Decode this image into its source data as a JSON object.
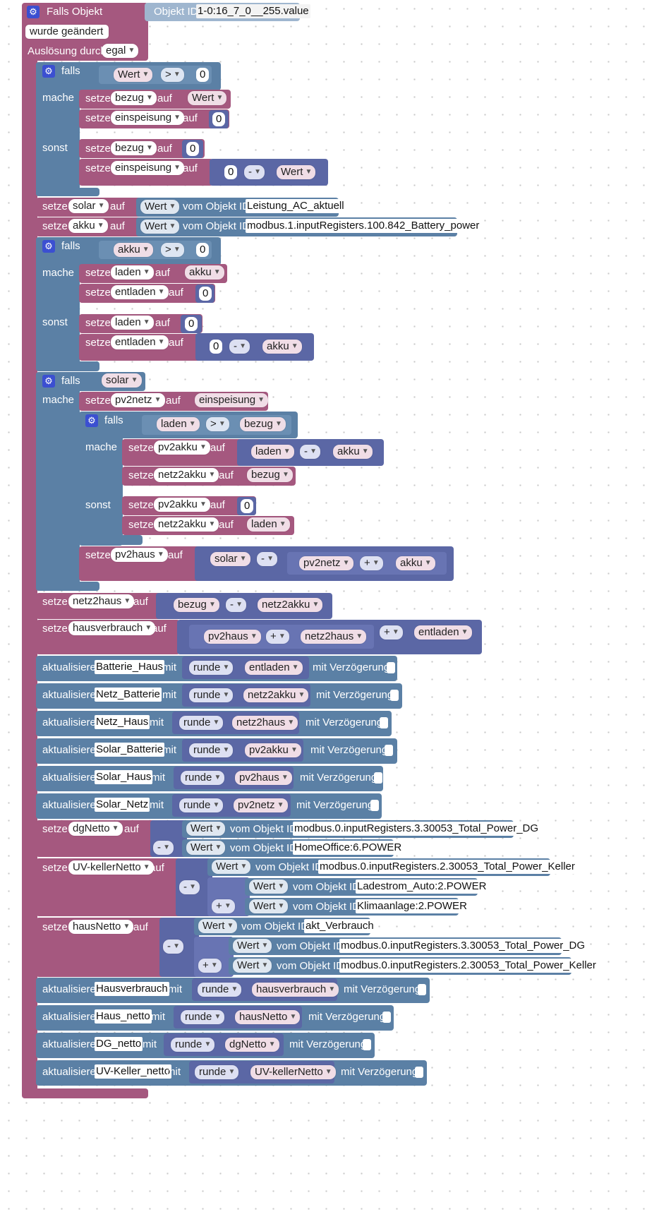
{
  "event": {
    "title": "Falls Objekt",
    "objekt_id_label": "Objekt ID",
    "objekt_id": "1-0:16_7_0__255.value",
    "trigger": "wurde geändert",
    "ausloesung_label": "Auslösung durch",
    "ausloesung_value": "egal"
  },
  "kw": {
    "falls": "falls",
    "mache": "mache",
    "sonst": "sonst",
    "setze": "setze",
    "auf": "auf",
    "vom_objekt": "vom Objekt ID",
    "aktualisiere": "aktualisiere",
    "mit": "mit",
    "mit_verzoegerung": "mit Verzögerung",
    "runde": "runde",
    "wert": "Wert"
  },
  "ops": {
    "gt": ">",
    "minus": "-",
    "plus": "+"
  },
  "nums": {
    "zero": "0"
  },
  "vars": {
    "wert": "Wert",
    "bezug": "bezug",
    "einspeisung": "einspeisung",
    "solar": "solar",
    "akku": "akku",
    "laden": "laden",
    "entladen": "entladen",
    "pv2netz": "pv2netz",
    "pv2akku": "pv2akku",
    "netz2akku": "netz2akku",
    "pv2haus": "pv2haus",
    "netz2haus": "netz2haus",
    "hausverbrauch": "hausverbrauch",
    "dgNetto": "dgNetto",
    "uvKellerNetto": "UV-kellerNetto",
    "hausNetto": "hausNetto"
  },
  "ids": {
    "solar": "Leistung_AC_aktuell",
    "akku": "modbus.1.inputRegisters.100.842_Battery_power",
    "dg": "modbus.0.inputRegisters.3.30053_Total_Power_DG",
    "homeoffice": "HomeOffice:6.POWER",
    "keller": "modbus.0.inputRegisters.2.30053_Total_Power_Keller",
    "ladestrom": "Ladestrom_Auto:2.POWER",
    "klima": "Klimaanlage:2.POWER",
    "aktVerbrauch": "akt_Verbrauch"
  },
  "targets": {
    "batterieHaus": "Batterie_Haus",
    "netzBatterie": "Netz_Batterie",
    "netzHaus": "Netz_Haus",
    "solarBatterie": "Solar_Batterie",
    "solarHaus": "Solar_Haus",
    "solarNetz": "Solar_Netz",
    "hausverbrauch": "Hausverbrauch",
    "hausNetto": "Haus_netto",
    "dgNetto": "DG_netto",
    "uvKellerNetto": "UV-Keller_netto"
  },
  "colors": {
    "variables": "#a5587f",
    "logic": "#5b80a5",
    "math": "#5b67a5",
    "gear": "#3b4fd1"
  }
}
